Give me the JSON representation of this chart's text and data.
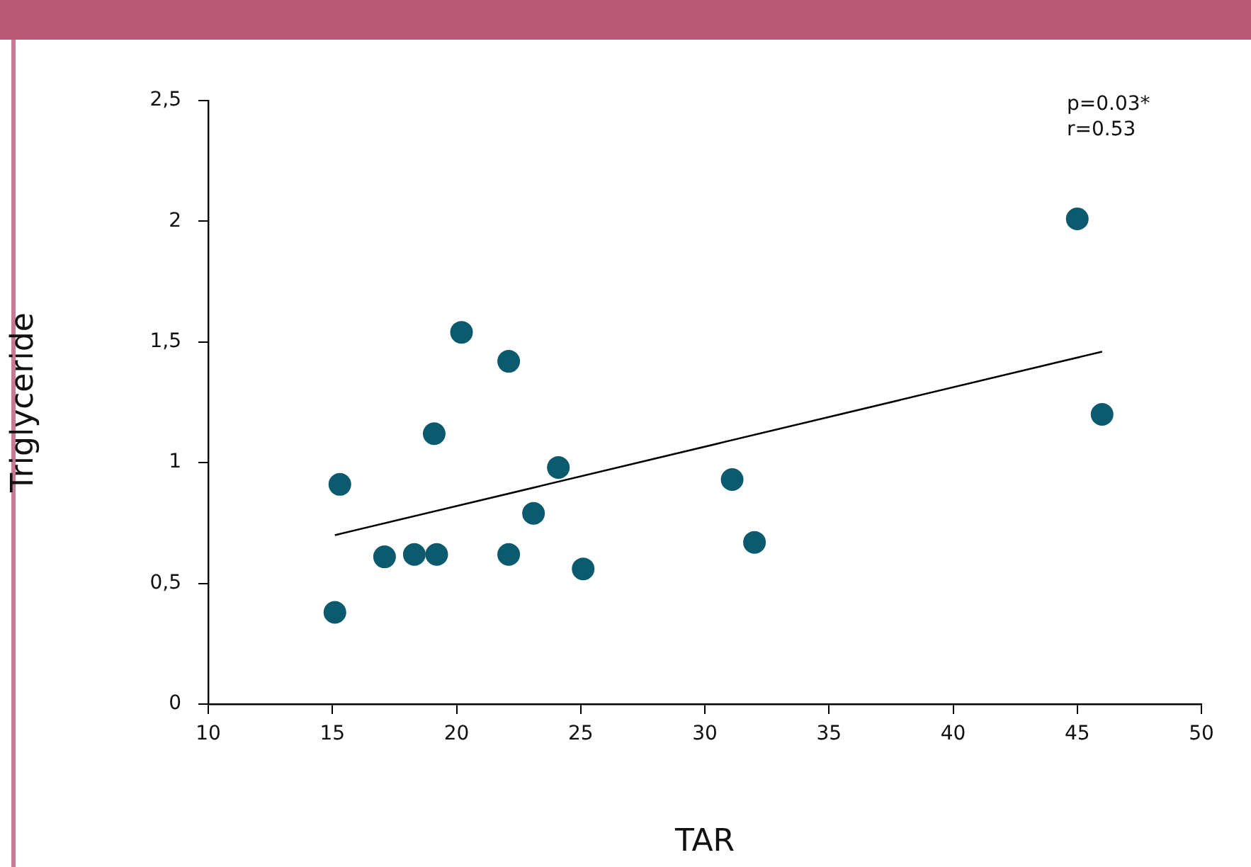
{
  "chart_data": {
    "type": "scatter",
    "xlabel": "TAR",
    "ylabel": "Triglyceride",
    "annotations": [
      "p=0.03*",
      "r=0.53"
    ],
    "xlim": [
      10,
      50
    ],
    "xticks": [
      10,
      15,
      20,
      25,
      30,
      35,
      40,
      45,
      50
    ],
    "ylim": [
      0,
      2.5
    ],
    "yticks": [
      0,
      {
        "value": 0.5,
        "label": "0,5"
      },
      1,
      {
        "value": 1.5,
        "label": "1,5"
      },
      2,
      {
        "value": 2.5,
        "label": "2,5"
      }
    ],
    "grid": false,
    "legend": false,
    "marker": "circle",
    "series": [
      {
        "type": "scatter",
        "color": "#0b5a6e",
        "x": [
          15.1,
          15.3,
          17.1,
          18.3,
          19.2,
          19.1,
          20.2,
          22.1,
          22.1,
          23.1,
          24.1,
          25.1,
          31.1,
          32.0,
          45.0,
          46.0
        ],
        "values": [
          0.38,
          0.91,
          0.61,
          0.62,
          0.62,
          1.12,
          1.54,
          0.62,
          1.42,
          0.79,
          0.98,
          0.56,
          0.93,
          0.67,
          2.01,
          1.2
        ]
      },
      {
        "type": "line",
        "color": "#000000",
        "x": [
          15.1,
          46.0
        ],
        "values": [
          0.7,
          1.46
        ],
        "marker": "none",
        "line_style": "solid"
      }
    ]
  }
}
